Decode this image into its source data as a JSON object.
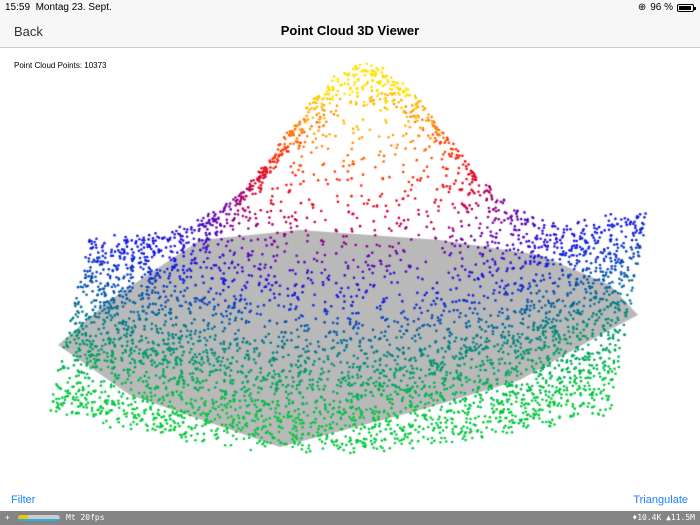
{
  "status": {
    "time": "15:59",
    "date": "Montag 23. Sept.",
    "battery": "96 %",
    "battery_level": 0.96
  },
  "nav": {
    "back": "Back",
    "title": "Point Cloud 3D Viewer"
  },
  "viewer": {
    "point_count_label": "Point Cloud Points: 10373",
    "plane_color": "#b9b9b9"
  },
  "toolbar": {
    "filter": "Filter",
    "triangulate": "Triangulate"
  },
  "perf": {
    "plus": "+",
    "fps": "Mt 20fps",
    "stats": "♦10.4K ▲11.5M"
  }
}
